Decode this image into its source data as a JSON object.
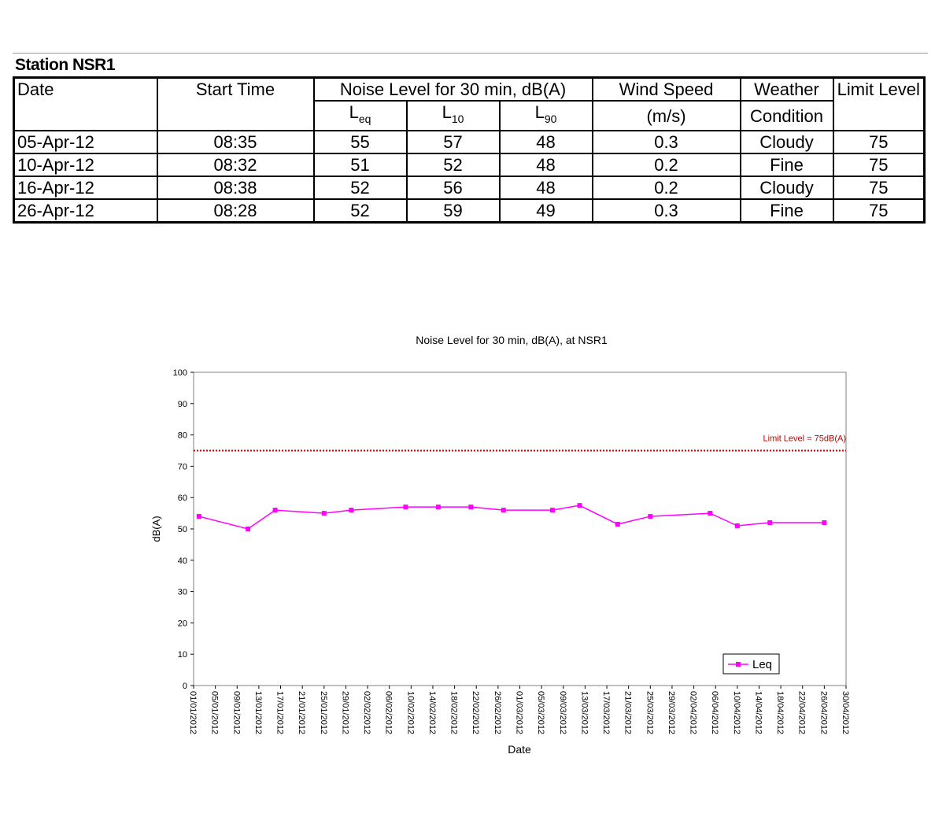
{
  "station": {
    "title": "Station NSR1"
  },
  "table": {
    "headers": {
      "date": "Date",
      "start_time": "Start Time",
      "noise_level": "Noise Level for 30 min, dB(A)",
      "leq": "L",
      "leq_sub": "eq",
      "l10": "L",
      "l10_sub": "10",
      "l90": "L",
      "l90_sub": "90",
      "wind_speed_1": "Wind Speed",
      "wind_speed_2": "(m/s)",
      "weather_1": "Weather",
      "weather_2": "Condition",
      "limit": "Limit Level"
    },
    "rows": [
      {
        "date": "05-Apr-12",
        "time": "08:35",
        "leq": "55",
        "l10": "57",
        "l90": "48",
        "wind": "0.3",
        "weather": "Cloudy",
        "limit": "75"
      },
      {
        "date": "10-Apr-12",
        "time": "08:32",
        "leq": "51",
        "l10": "52",
        "l90": "48",
        "wind": "0.2",
        "weather": "Fine",
        "limit": "75"
      },
      {
        "date": "16-Apr-12",
        "time": "08:38",
        "leq": "52",
        "l10": "56",
        "l90": "48",
        "wind": "0.2",
        "weather": "Cloudy",
        "limit": "75"
      },
      {
        "date": "26-Apr-12",
        "time": "08:28",
        "leq": "52",
        "l10": "59",
        "l90": "49",
        "wind": "0.3",
        "weather": "Fine",
        "limit": "75"
      }
    ]
  },
  "chart_data": {
    "type": "line",
    "title": "Noise Level for 30 min, dB(A), at NSR1",
    "xlabel": "Date",
    "ylabel": "dB(A)",
    "ylim": [
      0,
      100
    ],
    "yticks": [
      0,
      10,
      20,
      30,
      40,
      50,
      60,
      70,
      80,
      90,
      100
    ],
    "xlim": [
      "01/01/2012",
      "30/04/2012"
    ],
    "xtick_labels": [
      "01/01/2012",
      "05/01/2012",
      "09/01/2012",
      "13/01/2012",
      "17/01/2012",
      "21/01/2012",
      "25/01/2012",
      "29/01/2012",
      "02/02/2012",
      "06/02/2012",
      "10/02/2012",
      "14/02/2012",
      "18/02/2012",
      "22/02/2012",
      "26/02/2012",
      "01/03/2012",
      "05/03/2012",
      "09/03/2012",
      "13/03/2012",
      "17/03/2012",
      "21/03/2012",
      "25/03/2012",
      "29/03/2012",
      "02/04/2012",
      "06/04/2012",
      "10/04/2012",
      "14/04/2012",
      "18/04/2012",
      "22/04/2012",
      "26/04/2012",
      "30/04/2012"
    ],
    "grid": false,
    "legend": "bottom-right",
    "series": [
      {
        "name": "Leq",
        "color": "#ff00ff",
        "marker": "square",
        "x": [
          "02/01/2012",
          "11/01/2012",
          "16/01/2012",
          "25/01/2012",
          "30/01/2012",
          "09/02/2012",
          "15/02/2012",
          "21/02/2012",
          "27/02/2012",
          "07/03/2012",
          "12/03/2012",
          "19/03/2012",
          "25/03/2012",
          "05/04/2012",
          "10/04/2012",
          "16/04/2012",
          "26/04/2012"
        ],
        "y": [
          54,
          50,
          56,
          55,
          56,
          57,
          57,
          57,
          56,
          56,
          57.5,
          51.5,
          54,
          55,
          51,
          52,
          52
        ]
      }
    ],
    "reference_line": {
      "label": "Limit Level = 75dB(A)",
      "y": 75,
      "color": "#c00000",
      "style": "dotted"
    }
  }
}
